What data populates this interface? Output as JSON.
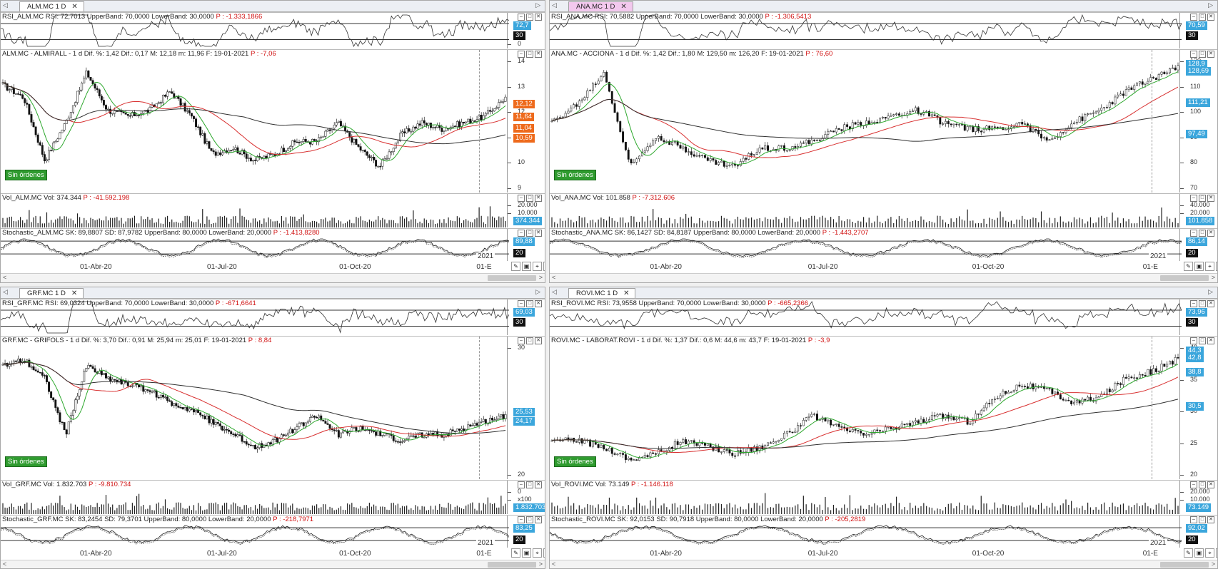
{
  "colors": {
    "up": "#2e2e2e",
    "green": "#2ea82e",
    "red": "#d83030",
    "black": "#303030",
    "blue": "#3ba6dc",
    "orange": "#ee6a1c"
  },
  "panes": [
    {
      "id": "alm",
      "tab": "ALM.MC 1 D",
      "active": false,
      "rsi_title": "RSI_ALM.MC  RSI: 72,7013  UpperBand: 70,0000  LowerBand: 30,0000",
      "rsi_p": "P : -1.333,1866",
      "rsi_labels": [
        "72,7",
        "30"
      ],
      "rsi_ticks": [
        "0"
      ],
      "price_title": "ALM.MC - ALMIRALL -  1 d  Dif. %: 1,42  Dif.: 0,17  M: 12,18  m: 11,96  F: 19-01-2021",
      "price_p": "P : -7,06",
      "price_ticks": [
        "14",
        "13",
        "12",
        "11",
        "10",
        "9"
      ],
      "price_labels": [
        "12,12",
        "11,64",
        "11,04",
        "10,59"
      ],
      "vol_title": "Vol_ALM.MC  Vol: 374.344",
      "vol_p": "P : -41.592.198",
      "vol_ticks": [
        "20.000",
        "10.000"
      ],
      "vol_label": "374.344",
      "sto_title": "Stochastic_ALM.MC  SK: 89,8807  SD: 87,9782  UpperBand: 80,0000  LowerBand: 20,0000",
      "sto_p": "P : -1.413,8280",
      "sto_labels": [
        "89,88",
        "20"
      ],
      "year": "2021",
      "orders": "Sin órdenes",
      "dates": [
        "01-Abr-20",
        "01-Jul-20",
        "01-Oct-20",
        "01-E"
      ]
    },
    {
      "id": "ana",
      "tab": "ANA.MC 1 D",
      "active": true,
      "rsi_title": "RSI_ANA.MC  RSI: 70,5882  UpperBand: 70,0000  LowerBand: 30,0000",
      "rsi_p": "P : -1.306,5413",
      "rsi_labels": [
        "70,59",
        "30"
      ],
      "rsi_ticks": [],
      "price_title": "ANA.MC - ACCIONA -  1 d  Dif. %: 1,42  Dif.: 1,80  M: 129,50  m: 126,20  F: 19-01-2021",
      "price_p": "P : 76,60",
      "price_ticks": [
        "120",
        "110",
        "100",
        "90",
        "80",
        "70"
      ],
      "price_labels": [
        "128,9",
        "128,69",
        "111,21",
        "97,49"
      ],
      "vol_title": "Vol_ANA.MC  Vol: 101.858",
      "vol_p": "P : -7.312.606",
      "vol_ticks": [
        "40.000",
        "20.000"
      ],
      "vol_label": "101.858",
      "sto_title": "Stochastic_ANA.MC  SK: 86,1427  SD: 84,8187  UpperBand: 80,0000  LowerBand: 20,0000",
      "sto_p": "P : -1.443,2707",
      "sto_labels": [
        "86,14",
        "20"
      ],
      "year": "2021",
      "orders": "Sin órdenes",
      "dates": [
        "01-Abr-20",
        "01-Jul-20",
        "01-Oct-20",
        "01-E"
      ]
    },
    {
      "id": "grf",
      "tab": "GRF.MC 1 D",
      "active": false,
      "rsi_title": "RSI_GRF.MC  RSI: 69,0324  UpperBand: 70,0000  LowerBand: 30,0000",
      "rsi_p": "P : -671,6641",
      "rsi_labels": [
        "69,03",
        "30"
      ],
      "rsi_ticks": [],
      "price_title": "GRF.MC - GRIFOLS -  1 d  Dif. %: 3,70  Dif.: 0,91  M: 25,94  m: 25,01  F: 19-01-2021",
      "price_p": "P : 8,84",
      "price_ticks": [
        "30",
        "20"
      ],
      "price_labels": [
        "25,53",
        "24,17"
      ],
      "vol_title": "Vol_GRF.MC  Vol: 1.832.703",
      "vol_p": "P : -9.810.734",
      "vol_ticks": [
        "0",
        "x100"
      ],
      "vol_label": "1.832.703",
      "sto_title": "Stochastic_GRF.MC  SK: 83,2454  SD: 79,3701  UpperBand: 80,0000  LowerBand: 20,0000",
      "sto_p": "P : -218,7971",
      "sto_labels": [
        "83,25",
        "20"
      ],
      "year": "2021",
      "orders": "Sin órdenes",
      "dates": [
        "01-Abr-20",
        "01-Jul-20",
        "01-Oct-20",
        "01-E"
      ]
    },
    {
      "id": "rovi",
      "tab": "ROVI.MC 1 D",
      "active": false,
      "rsi_title": "RSI_ROVI.MC  RSI: 73,9558  UpperBand: 70,0000  LowerBand: 30,0000",
      "rsi_p": "P : -665,2366",
      "rsi_labels": [
        "73,96",
        "30"
      ],
      "rsi_ticks": [],
      "price_title": "ROVI.MC - LABORAT.ROVI -  1 d  Dif. %: 1,37  Dif.: 0,6  M: 44,6  m: 43,7  F: 19-01-2021",
      "price_p": "P : -3,9",
      "price_ticks": [
        "40",
        "35",
        "30",
        "25",
        "20"
      ],
      "price_labels": [
        "44,3",
        "42,8",
        "38,8",
        "30,5"
      ],
      "vol_title": "Vol_ROVI.MC  Vol: 73.149",
      "vol_p": "P : -1.146.118",
      "vol_ticks": [
        "20.000",
        "10.000"
      ],
      "vol_label": "73.149",
      "sto_title": "Stochastic_ROVI.MC  SK: 92,0153  SD: 90,7918  UpperBand: 80,0000  LowerBand: 20,0000",
      "sto_p": "P : -205,2819",
      "sto_labels": [
        "92,02",
        "20"
      ],
      "year": "2021",
      "orders": "Sin órdenes",
      "dates": [
        "01-Abr-20",
        "01-Jul-20",
        "01-Oct-20",
        "01-E"
      ]
    }
  ]
}
